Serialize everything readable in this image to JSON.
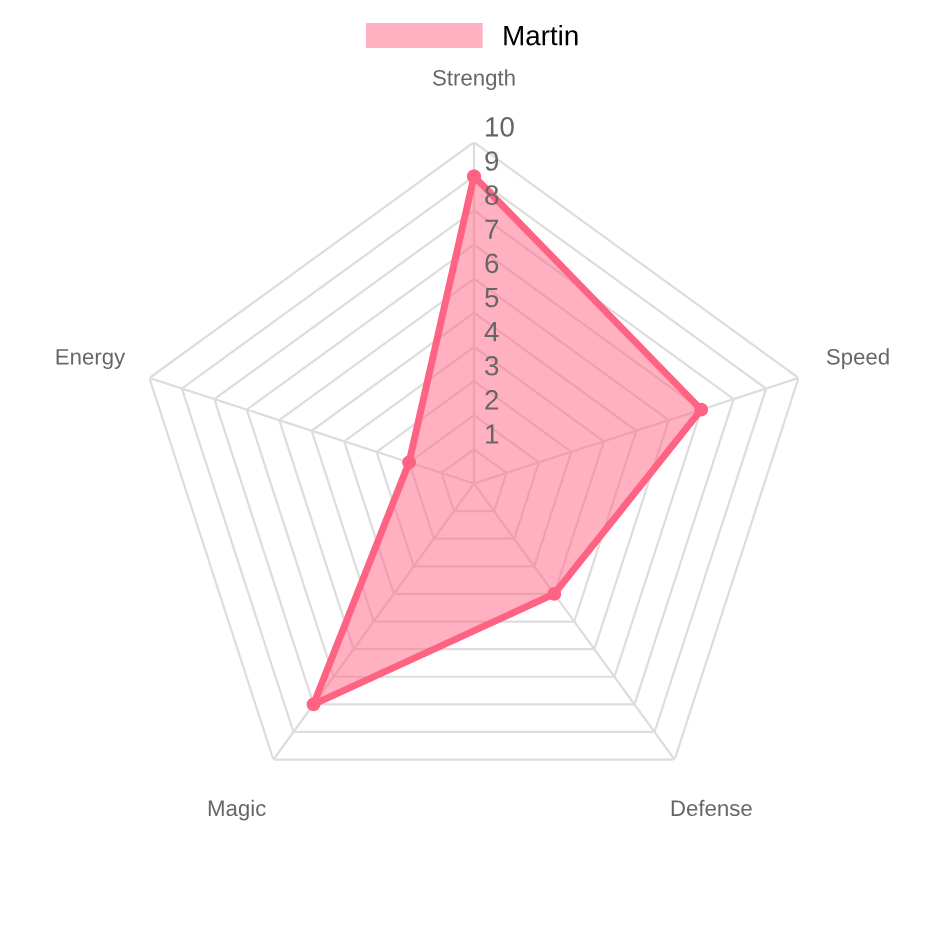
{
  "chart_data": {
    "type": "radar",
    "categories": [
      "Strength",
      "Speed",
      "Defense",
      "Magic",
      "Energy"
    ],
    "series": [
      {
        "name": "Martin",
        "color": "#ff6384",
        "values": [
          9,
          7,
          4,
          8,
          2
        ]
      }
    ],
    "ylim": [
      0,
      10
    ],
    "yticks": [
      1,
      2,
      3,
      4,
      5,
      6,
      7,
      8,
      9,
      10
    ],
    "grid": true,
    "legend": "top",
    "marker": "circle"
  }
}
